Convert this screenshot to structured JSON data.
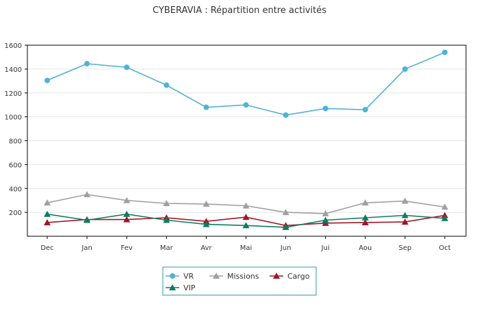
{
  "chart_data": {
    "type": "line",
    "title": "CYBERAVIA : Répartition entre activités",
    "xlabel": "",
    "ylabel": "",
    "categories": [
      "Dec",
      "Jan",
      "Fev",
      "Mar",
      "Avr",
      "Mai",
      "Jun",
      "Jui",
      "Aou",
      "Sep",
      "Oct"
    ],
    "ylim": [
      0,
      1600
    ],
    "yticks": [
      "200",
      "400",
      "600",
      "800",
      "1000",
      "1200",
      "1400",
      "1600"
    ],
    "grid": true,
    "legend_position": "bottom-center",
    "series": [
      {
        "name": "VR",
        "color": "#4eb3d3",
        "marker": "circle",
        "values": [
          1305,
          1445,
          1415,
          1265,
          1080,
          1100,
          1015,
          1070,
          1060,
          1400,
          1540
        ]
      },
      {
        "name": "Missions",
        "color": "#a0a0a0",
        "marker": "triangle",
        "values": [
          280,
          350,
          300,
          275,
          270,
          255,
          200,
          190,
          280,
          295,
          245
        ]
      },
      {
        "name": "Cargo",
        "color": "#a31526",
        "marker": "triangle",
        "values": [
          115,
          140,
          140,
          155,
          125,
          160,
          90,
          110,
          115,
          120,
          175
        ]
      },
      {
        "name": "VIP",
        "color": "#0b7d60",
        "marker": "triangle",
        "values": [
          185,
          135,
          185,
          135,
          100,
          90,
          75,
          135,
          155,
          175,
          150
        ]
      }
    ]
  }
}
